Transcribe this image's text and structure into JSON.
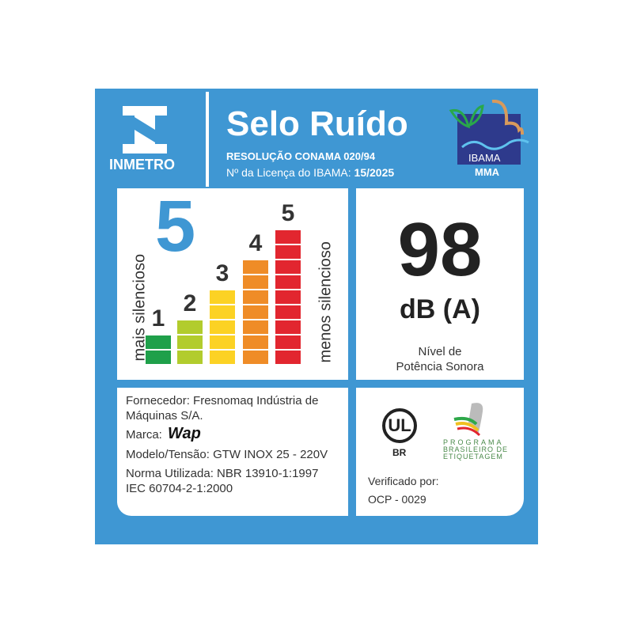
{
  "header": {
    "logo": "INMETRO",
    "title": "Selo Ruído",
    "resolution": "RESOLUÇÃO CONAMA 020/94",
    "license_label": "Nº da Licença do IBAMA:",
    "license_value": "15/2025",
    "ibama_logo": "IBAMA",
    "ibama_sub": "MMA"
  },
  "rating": {
    "value": "5",
    "left_label": "mais silencioso",
    "right_label": "menos silencioso",
    "bars": [
      {
        "label": "1",
        "segments": 2,
        "color": "#1fa04a"
      },
      {
        "label": "2",
        "segments": 3,
        "color": "#b2cc2d"
      },
      {
        "label": "3",
        "segments": 5,
        "color": "#fcd224"
      },
      {
        "label": "4",
        "segments": 7,
        "color": "#ef8c27"
      },
      {
        "label": "5",
        "segments": 9,
        "color": "#e2262f"
      }
    ]
  },
  "noise": {
    "value": "98",
    "unit": "dB (A)",
    "label_line1": "Nível de",
    "label_line2": "Potência Sonora"
  },
  "info": {
    "supplier": "Fornecedor: Fresnomaq Indústria de",
    "supplier2": "Máquinas S/A.",
    "brand_label": "Marca:",
    "brand": "Wap",
    "model": "Modelo/Tensão: GTW INOX 25 - 220V",
    "norm": "Norma Utilizada: NBR 13910-1:1997",
    "norm2": "IEC 60704-2-1:2000"
  },
  "certification": {
    "ul_logo": "UL",
    "ul_sub": "BR",
    "pbe_line1": "PROGRAMA",
    "pbe_line2": "BRASILEIRO DE",
    "pbe_line3": "ETIQUETAGEM",
    "verified_label": "Verificado por:",
    "verified_value": "OCP - 0029"
  },
  "colors": {
    "frame": "#3f97d3",
    "ibama_box": "#2e3a8c"
  }
}
